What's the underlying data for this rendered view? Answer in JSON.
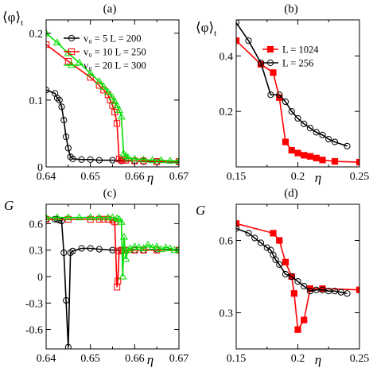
{
  "colors": {
    "black": "#000000",
    "red": "#ff0000",
    "green": "#00dd00"
  },
  "chart_data": [
    {
      "panel_label": "(a)",
      "type": "line",
      "xlabel": "η",
      "ylabel": "⟨φ⟩",
      "ylabel_sub": "t",
      "xlim": [
        0.64,
        0.67
      ],
      "ylim": [
        0,
        0.22
      ],
      "xticks": [
        "0.64",
        "0.65",
        "0.66",
        "0.67"
      ],
      "xtick_values": [
        0.64,
        0.65,
        0.66,
        0.67
      ],
      "yticks": [
        "0",
        "0.1",
        "0.2"
      ],
      "ytick_values": [
        0,
        0.1,
        0.2
      ],
      "legend": [
        "v₀ = 5    L = 200",
        "v₀ = 10   L = 250",
        "v₀ = 20   L = 300"
      ],
      "series": [
        {
          "name": "v₀ = 5    L = 200",
          "color": "black",
          "marker": "circle",
          "x": [
            0.64,
            0.642,
            0.6425,
            0.643,
            0.6435,
            0.644,
            0.6445,
            0.645,
            0.6455,
            0.646,
            0.648,
            0.65,
            0.652,
            0.655,
            0.657,
            0.66,
            0.662,
            0.665,
            0.67
          ],
          "y": [
            0.115,
            0.11,
            0.103,
            0.1,
            0.09,
            0.07,
            0.045,
            0.028,
            0.015,
            0.012,
            0.011,
            0.011,
            0.01,
            0.01,
            0.009,
            0.009,
            0.008,
            0.008,
            0.007
          ]
        },
        {
          "name": "v₀ = 10   L = 250",
          "color": "red",
          "marker": "square",
          "x": [
            0.64,
            0.645,
            0.65,
            0.652,
            0.653,
            0.654,
            0.6545,
            0.655,
            0.6555,
            0.656,
            0.6565,
            0.657,
            0.6575,
            0.658,
            0.66,
            0.662,
            0.665,
            0.67
          ],
          "y": [
            0.183,
            0.158,
            0.134,
            0.122,
            0.115,
            0.108,
            0.1,
            0.092,
            0.082,
            0.065,
            0.012,
            0.01,
            0.01,
            0.01,
            0.009,
            0.009,
            0.008,
            0.008
          ]
        },
        {
          "name": "v₀ = 20   L = 300",
          "color": "green",
          "marker": "triangle",
          "x": [
            0.64,
            0.6425,
            0.645,
            0.6475,
            0.65,
            0.652,
            0.653,
            0.654,
            0.655,
            0.6555,
            0.656,
            0.6565,
            0.657,
            0.6575,
            0.658,
            0.6585,
            0.66,
            0.662,
            0.664,
            0.666,
            0.668,
            0.67
          ],
          "y": [
            0.2,
            0.186,
            0.17,
            0.156,
            0.14,
            0.128,
            0.12,
            0.112,
            0.104,
            0.098,
            0.092,
            0.085,
            0.075,
            0.02,
            0.016,
            0.014,
            0.012,
            0.011,
            0.01,
            0.01,
            0.009,
            0.009
          ]
        }
      ]
    },
    {
      "panel_label": "(b)",
      "type": "line",
      "xlabel": "η",
      "ylabel": "⟨φ⟩",
      "ylabel_sub": "t",
      "xlim": [
        0.15,
        0.25
      ],
      "ylim": [
        0,
        0.53
      ],
      "xticks": [
        "0.15",
        "0.2",
        "0.25"
      ],
      "xtick_values": [
        0.15,
        0.2,
        0.25
      ],
      "yticks": [
        "0.2",
        "0.4"
      ],
      "ytick_values": [
        0.2,
        0.4
      ],
      "legend": [
        "L = 1024",
        "L = 256"
      ],
      "series": [
        {
          "name": "L = 1024",
          "color": "red",
          "marker": "filled-square",
          "x": [
            0.15,
            0.17,
            0.18,
            0.185,
            0.19,
            0.195,
            0.2,
            0.205,
            0.21,
            0.215,
            0.22,
            0.23,
            0.25
          ],
          "y": [
            0.455,
            0.37,
            0.34,
            0.25,
            0.09,
            0.06,
            0.05,
            0.042,
            0.038,
            0.032,
            0.025,
            0.02,
            0.017
          ]
        },
        {
          "name": "L = 256",
          "color": "black",
          "marker": "circle",
          "x": [
            0.15,
            0.16,
            0.17,
            0.178,
            0.185,
            0.19,
            0.195,
            0.2,
            0.205,
            0.21,
            0.215,
            0.22,
            0.225,
            0.23,
            0.24
          ],
          "y": [
            0.52,
            0.455,
            0.375,
            0.26,
            0.26,
            0.235,
            0.2,
            0.175,
            0.155,
            0.14,
            0.125,
            0.115,
            0.1,
            0.09,
            0.075
          ]
        }
      ]
    },
    {
      "panel_label": "(c)",
      "type": "line",
      "xlabel": "η",
      "ylabel": "G",
      "xlim": [
        0.64,
        0.67
      ],
      "ylim": [
        -0.82,
        0.82
      ],
      "xticks": [
        "0.64",
        "0.65",
        "0.66",
        "0.67"
      ],
      "xtick_values": [
        0.64,
        0.65,
        0.66,
        0.67
      ],
      "yticks": [
        "-0.6",
        "-0.3",
        "0",
        "0.3",
        "0.6"
      ],
      "ytick_values": [
        -0.6,
        -0.3,
        0,
        0.3,
        0.6
      ],
      "series": [
        {
          "name": "v₀ = 5    L = 200",
          "color": "black",
          "marker": "circle",
          "x": [
            0.64,
            0.642,
            0.6425,
            0.643,
            0.6435,
            0.644,
            0.6445,
            0.645,
            0.6455,
            0.646,
            0.648,
            0.65,
            0.652,
            0.655,
            0.657,
            0.66,
            0.662,
            0.665,
            0.67
          ],
          "y": [
            0.65,
            0.65,
            0.65,
            0.64,
            0.63,
            0.27,
            -0.27,
            -0.8,
            0.27,
            0.29,
            0.32,
            0.32,
            0.31,
            0.3,
            0.3,
            0.3,
            0.3,
            0.31,
            0.3
          ]
        },
        {
          "name": "v₀ = 10   L = 250",
          "color": "red",
          "marker": "square",
          "x": [
            0.64,
            0.645,
            0.65,
            0.652,
            0.653,
            0.654,
            0.655,
            0.6555,
            0.656,
            0.6562,
            0.6565,
            0.657,
            0.6575,
            0.658,
            0.66,
            0.662,
            0.665,
            0.67
          ],
          "y": [
            0.65,
            0.65,
            0.65,
            0.65,
            0.65,
            0.65,
            0.64,
            0.62,
            -0.12,
            -0.05,
            0.29,
            0.3,
            0.3,
            0.3,
            0.3,
            0.3,
            0.3,
            0.3
          ]
        },
        {
          "name": "v₀ = 20   L = 300",
          "color": "green",
          "marker": "triangle",
          "x": [
            0.64,
            0.6425,
            0.645,
            0.6475,
            0.65,
            0.652,
            0.654,
            0.655,
            0.656,
            0.6565,
            0.657,
            0.6573,
            0.6576,
            0.658,
            0.6585,
            0.659,
            0.66,
            0.661,
            0.662,
            0.663,
            0.664,
            0.665,
            0.666,
            0.667,
            0.668,
            0.669,
            0.67
          ],
          "y": [
            0.67,
            0.67,
            0.67,
            0.67,
            0.67,
            0.67,
            0.67,
            0.67,
            0.66,
            0.65,
            0.62,
            0.0,
            0.45,
            0.2,
            0.3,
            0.32,
            0.34,
            0.33,
            0.32,
            0.36,
            0.33,
            0.34,
            0.31,
            0.33,
            0.32,
            0.3,
            0.31
          ]
        }
      ]
    },
    {
      "panel_label": "(d)",
      "type": "line",
      "xlabel": "η",
      "ylabel": "G",
      "xlim": [
        0.15,
        0.25
      ],
      "ylim": [
        0.15,
        0.75
      ],
      "xticks": [
        "0.15",
        "0.2",
        "0.25"
      ],
      "xtick_values": [
        0.15,
        0.2,
        0.25
      ],
      "yticks": [
        "0.3",
        "0.6"
      ],
      "ytick_values": [
        0.3,
        0.6
      ],
      "series": [
        {
          "name": "L = 1024",
          "color": "red",
          "marker": "filled-square",
          "x": [
            0.15,
            0.18,
            0.185,
            0.19,
            0.195,
            0.197,
            0.2,
            0.205,
            0.21,
            0.22,
            0.25
          ],
          "y": [
            0.67,
            0.63,
            0.6,
            0.51,
            0.45,
            0.38,
            0.23,
            0.27,
            0.4,
            0.4,
            0.395
          ]
        },
        {
          "name": "L = 256",
          "color": "black",
          "marker": "circle",
          "x": [
            0.15,
            0.16,
            0.165,
            0.17,
            0.175,
            0.178,
            0.18,
            0.182,
            0.185,
            0.19,
            0.195,
            0.2,
            0.205,
            0.21,
            0.215,
            0.22,
            0.225,
            0.23,
            0.235,
            0.24
          ],
          "y": [
            0.65,
            0.63,
            0.61,
            0.59,
            0.57,
            0.56,
            0.54,
            0.52,
            0.5,
            0.46,
            0.45,
            0.43,
            0.41,
            0.39,
            0.395,
            0.395,
            0.39,
            0.39,
            0.385,
            0.38
          ]
        }
      ]
    }
  ]
}
